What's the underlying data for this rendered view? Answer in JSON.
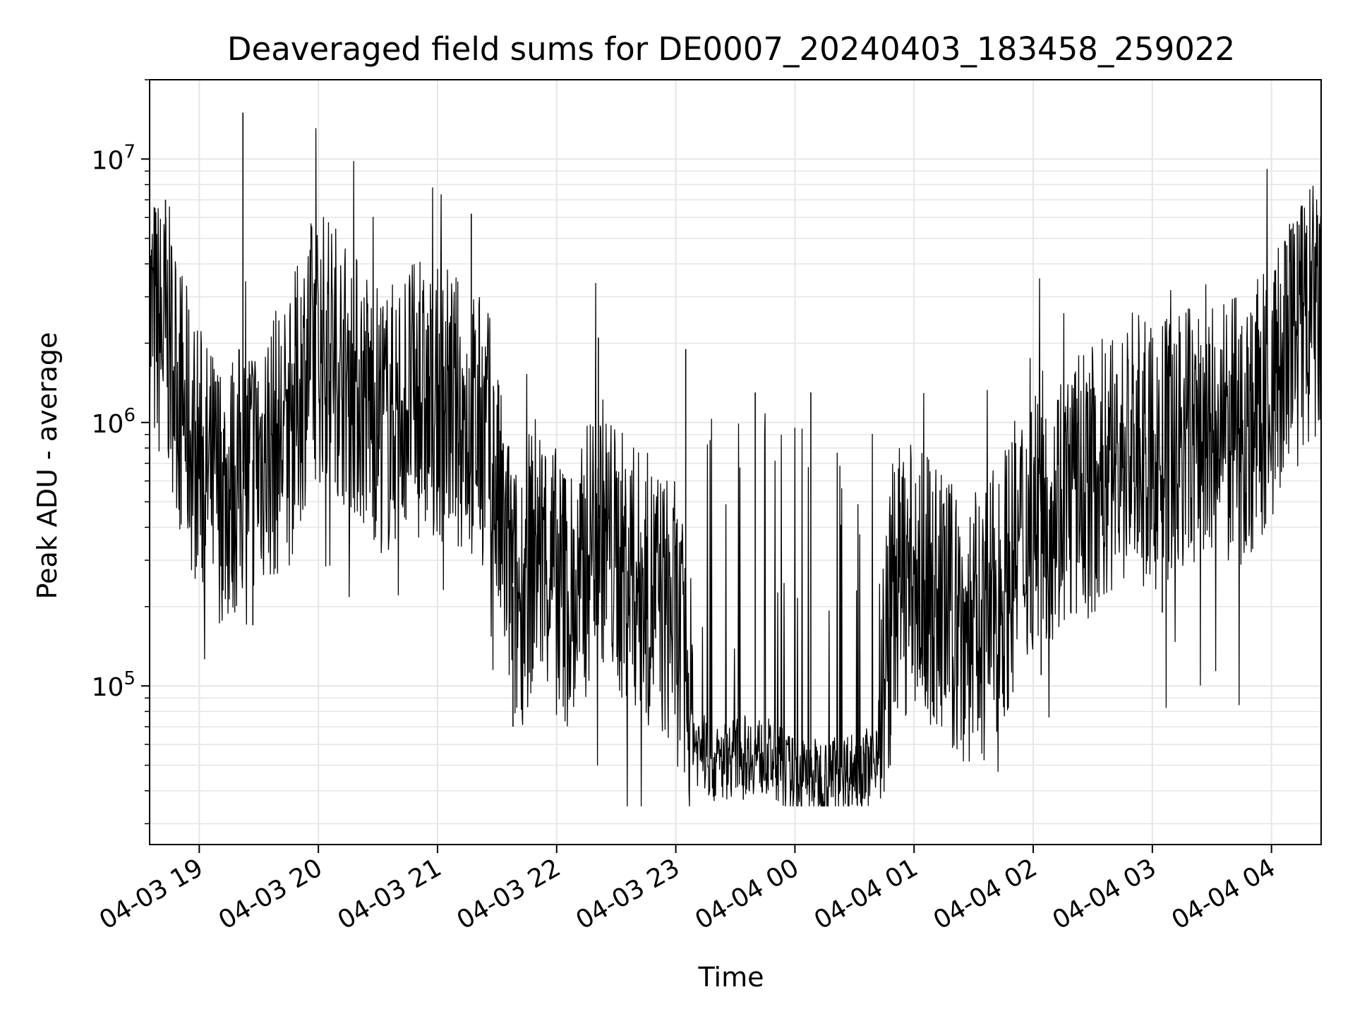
{
  "chart_data": {
    "type": "line",
    "title": "Deaveraged field sums for DE0007_20240403_183458_259022",
    "xlabel": "Time",
    "ylabel": "Peak ADU - average",
    "yscale": "log",
    "ylim": [
      25000,
      20000000
    ],
    "xlim": [
      "2024-04-03 18:35",
      "2024-04-04 04:25"
    ],
    "x_ticks": [
      "04-03 19",
      "04-03 20",
      "04-03 21",
      "04-03 22",
      "04-03 23",
      "04-04 00",
      "04-04 01",
      "04-04 02",
      "04-04 03",
      "04-04 04"
    ],
    "y_ticks": [
      {
        "base": "10",
        "exp": "5",
        "value": 100000
      },
      {
        "base": "10",
        "exp": "6",
        "value": 1000000
      },
      {
        "base": "10",
        "exp": "7",
        "value": 10000000
      }
    ],
    "grid": true,
    "line_color": "#000000",
    "series": [
      {
        "points": [
          [
            "2024-04-03 18:35",
            2500000
          ],
          [
            "2024-04-03 18:45",
            2000000
          ],
          [
            "2024-04-03 18:55",
            900000
          ],
          [
            "2024-04-03 19:05",
            600000
          ],
          [
            "2024-04-03 19:15",
            550000
          ],
          [
            "2024-04-03 19:25",
            700000
          ],
          [
            "2024-04-03 19:35",
            800000
          ],
          [
            "2024-04-03 19:45",
            900000
          ],
          [
            "2024-04-03 19:55",
            1800000
          ],
          [
            "2024-04-03 20:05",
            2000000
          ],
          [
            "2024-04-03 20:15",
            1500000
          ],
          [
            "2024-04-03 20:25",
            1200000
          ],
          [
            "2024-04-03 20:35",
            1000000
          ],
          [
            "2024-04-03 20:45",
            1300000
          ],
          [
            "2024-04-03 20:55",
            1100000
          ],
          [
            "2024-04-03 21:05",
            1200000
          ],
          [
            "2024-04-03 21:15",
            1000000
          ],
          [
            "2024-04-03 21:25",
            900000
          ],
          [
            "2024-04-03 21:32",
            400000
          ],
          [
            "2024-04-03 21:40",
            200000
          ],
          [
            "2024-04-03 21:50",
            350000
          ],
          [
            "2024-04-03 22:00",
            250000
          ],
          [
            "2024-04-03 22:10",
            200000
          ],
          [
            "2024-04-03 22:20",
            450000
          ],
          [
            "2024-04-03 22:30",
            300000
          ],
          [
            "2024-04-03 22:40",
            250000
          ],
          [
            "2024-04-03 22:50",
            220000
          ],
          [
            "2024-04-03 23:00",
            180000
          ],
          [
            "2024-04-03 23:10",
            60000
          ],
          [
            "2024-04-03 23:20",
            50000
          ],
          [
            "2024-04-03 23:30",
            55000
          ],
          [
            "2024-04-03 23:40",
            55000
          ],
          [
            "2024-04-03 23:50",
            52000
          ],
          [
            "2024-04-04 00:00",
            45000
          ],
          [
            "2024-04-04 00:10",
            45000
          ],
          [
            "2024-04-04 00:20",
            47000
          ],
          [
            "2024-04-04 00:30",
            48000
          ],
          [
            "2024-04-04 00:40",
            50000
          ],
          [
            "2024-04-04 00:50",
            250000
          ],
          [
            "2024-04-04 01:00",
            250000
          ],
          [
            "2024-04-04 01:10",
            220000
          ],
          [
            "2024-04-04 01:20",
            180000
          ],
          [
            "2024-04-04 01:30",
            160000
          ],
          [
            "2024-04-04 01:40",
            200000
          ],
          [
            "2024-04-04 01:50",
            300000
          ],
          [
            "2024-04-04 02:00",
            450000
          ],
          [
            "2024-04-04 02:10",
            500000
          ],
          [
            "2024-04-04 02:20",
            550000
          ],
          [
            "2024-04-04 02:30",
            600000
          ],
          [
            "2024-04-04 02:40",
            700000
          ],
          [
            "2024-04-04 02:50",
            800000
          ],
          [
            "2024-04-04 03:00",
            700000
          ],
          [
            "2024-04-04 03:10",
            800000
          ],
          [
            "2024-04-04 03:20",
            900000
          ],
          [
            "2024-04-04 03:30",
            850000
          ],
          [
            "2024-04-04 03:40",
            900000
          ],
          [
            "2024-04-04 03:50",
            1000000
          ],
          [
            "2024-04-04 04:00",
            1300000
          ],
          [
            "2024-04-04 04:10",
            2000000
          ],
          [
            "2024-04-04 04:20",
            2500000
          ],
          [
            "2024-04-04 04:25",
            2500000
          ]
        ],
        "spikes": [
          [
            "2024-04-03 18:43",
            7000000
          ],
          [
            "2024-04-03 19:22",
            15000000
          ],
          [
            "2024-04-03 21:17",
            6200000
          ],
          [
            "2024-04-03 22:21",
            2100000
          ],
          [
            "2024-04-03 23:05",
            1900000
          ],
          [
            "2024-04-03 23:40",
            1300000
          ],
          [
            "2024-04-04 00:08",
            1300000
          ],
          [
            "2024-04-04 04:13",
            5800000
          ],
          [
            "2024-04-03 19:27",
            170000
          ],
          [
            "2024-04-03 21:38",
            70000
          ],
          [
            "2024-04-03 23:34",
            37000
          ],
          [
            "2024-04-04 00:15",
            35000
          ],
          [
            "2024-04-04 00:48",
            50000
          ],
          [
            "2024-04-04 02:04",
            110000
          ],
          [
            "2024-04-04 03:05",
            190000
          ]
        ]
      }
    ]
  }
}
